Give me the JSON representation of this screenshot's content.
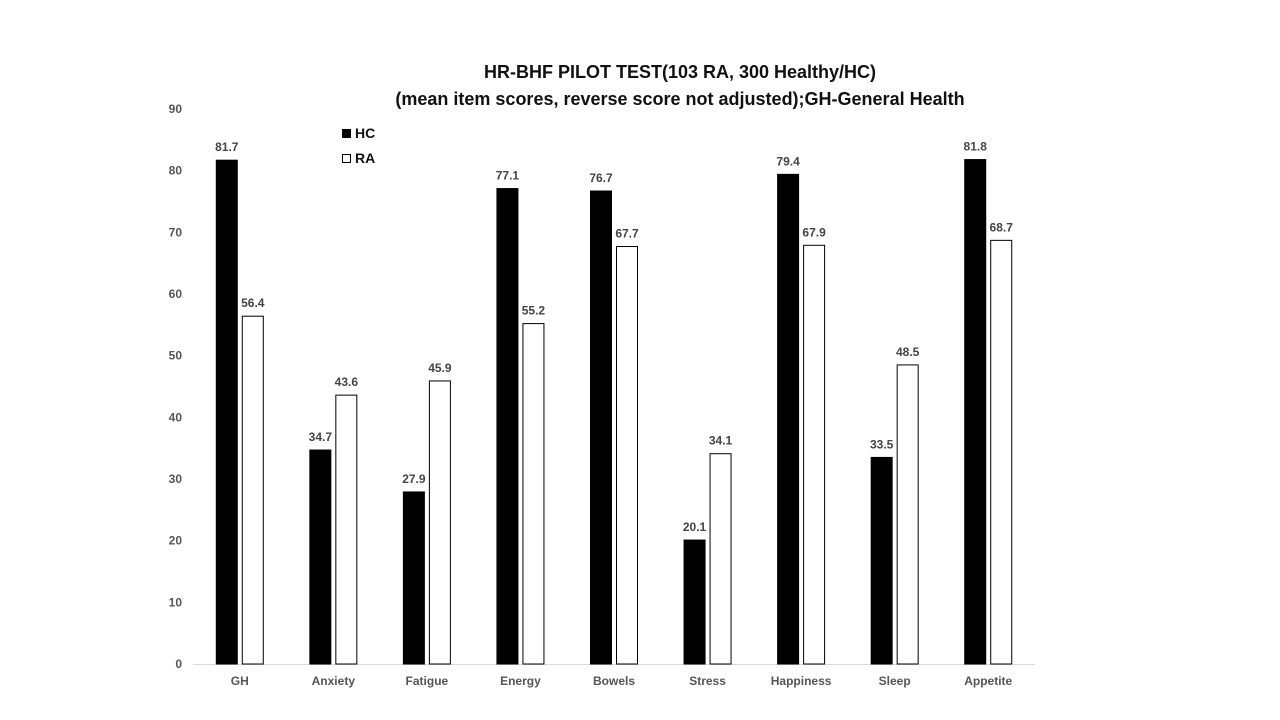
{
  "chart_data": {
    "type": "bar",
    "title": "HR-BHF  PILOT TEST(103 RA, 300 Healthy/HC)",
    "subtitle": "(mean item scores, reverse score not adjusted);GH-General  Health",
    "categories": [
      "GH",
      "Anxiety",
      "Fatigue",
      "Energy",
      "Bowels",
      "Stress",
      "Happiness",
      "Sleep",
      "Appetite"
    ],
    "series": [
      {
        "name": "HC",
        "color": "#000000",
        "values": [
          81.7,
          34.7,
          27.9,
          77.1,
          76.7,
          20.1,
          79.4,
          33.5,
          81.8
        ]
      },
      {
        "name": "RA",
        "color": "#ffffff",
        "values": [
          56.4,
          43.6,
          45.9,
          55.2,
          67.7,
          34.1,
          67.9,
          48.5,
          68.7
        ]
      }
    ],
    "ylim": [
      0,
      90
    ],
    "yticks": [
      "0",
      "10",
      "20",
      "30",
      "40",
      "50",
      "60",
      "70",
      "80",
      "90"
    ],
    "grid": false,
    "legend_position": "top-left"
  }
}
